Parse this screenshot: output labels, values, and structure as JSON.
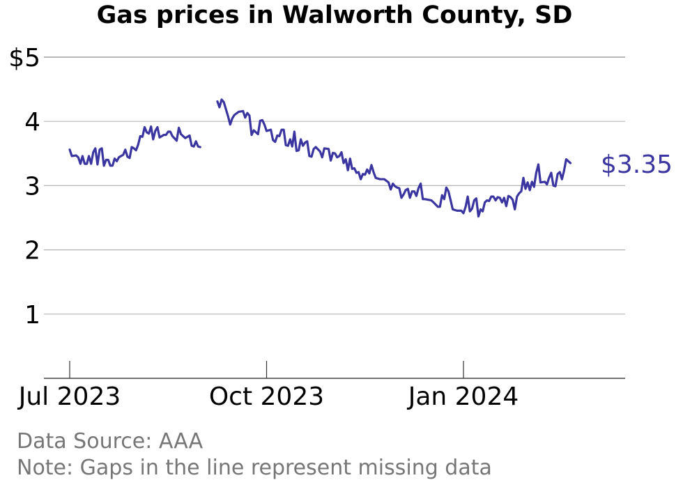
{
  "chart_data": {
    "type": "line",
    "title": "Gas prices in Walworth County, SD",
    "y_tick_labels": [
      "$5",
      "4",
      "3",
      "2",
      "1"
    ],
    "y_ticks": [
      5,
      4,
      3,
      2,
      1
    ],
    "ylim": [
      0,
      5
    ],
    "x_tick_labels": [
      "Jul 2023",
      "Oct 2023",
      "Jan 2024"
    ],
    "x_ticks": [
      "2023-07-01",
      "2023-10-01",
      "2024-01-01"
    ],
    "xlim": [
      "2023-06-20",
      "2024-03-30"
    ],
    "grid": "horizontal",
    "series": [
      {
        "color": "#3a35a0",
        "segments": [
          [
            [
              "2023-07-01",
              3.56
            ],
            [
              "2023-07-02",
              3.46
            ],
            [
              "2023-07-04",
              3.47
            ],
            [
              "2023-07-05",
              3.44
            ],
            [
              "2023-07-06",
              3.34
            ],
            [
              "2023-07-07",
              3.46
            ],
            [
              "2023-07-08",
              3.34
            ],
            [
              "2023-07-09",
              3.34
            ],
            [
              "2023-07-10",
              3.46
            ],
            [
              "2023-07-11",
              3.34
            ],
            [
              "2023-07-12",
              3.52
            ],
            [
              "2023-07-13",
              3.58
            ],
            [
              "2023-07-14",
              3.33
            ],
            [
              "2023-07-15",
              3.56
            ],
            [
              "2023-07-16",
              3.58
            ],
            [
              "2023-07-17",
              3.31
            ],
            [
              "2023-07-18",
              3.4
            ],
            [
              "2023-07-19",
              3.4
            ],
            [
              "2023-07-20",
              3.31
            ],
            [
              "2023-07-21",
              3.31
            ],
            [
              "2023-07-22",
              3.42
            ],
            [
              "2023-07-23",
              3.38
            ],
            [
              "2023-07-24",
              3.44
            ],
            [
              "2023-07-26",
              3.48
            ],
            [
              "2023-07-27",
              3.56
            ],
            [
              "2023-07-28",
              3.45
            ],
            [
              "2023-07-29",
              3.43
            ],
            [
              "2023-07-30",
              3.6
            ],
            [
              "2023-07-31",
              3.58
            ],
            [
              "2023-08-01",
              3.55
            ],
            [
              "2023-08-02",
              3.64
            ],
            [
              "2023-08-03",
              3.77
            ],
            [
              "2023-08-04",
              3.76
            ],
            [
              "2023-08-05",
              3.91
            ],
            [
              "2023-08-06",
              3.83
            ],
            [
              "2023-08-07",
              3.81
            ],
            [
              "2023-08-08",
              3.92
            ],
            [
              "2023-08-09",
              3.72
            ],
            [
              "2023-08-10",
              3.85
            ],
            [
              "2023-08-11",
              3.91
            ],
            [
              "2023-08-12",
              3.75
            ],
            [
              "2023-08-14",
              3.79
            ],
            [
              "2023-08-15",
              3.79
            ],
            [
              "2023-08-16",
              3.84
            ],
            [
              "2023-08-17",
              3.84
            ],
            [
              "2023-08-18",
              3.77
            ],
            [
              "2023-08-20",
              3.7
            ],
            [
              "2023-08-21",
              3.9
            ],
            [
              "2023-08-22",
              3.8
            ],
            [
              "2023-08-24",
              3.74
            ],
            [
              "2023-08-26",
              3.78
            ],
            [
              "2023-08-27",
              3.62
            ],
            [
              "2023-08-28",
              3.61
            ],
            [
              "2023-08-29",
              3.69
            ],
            [
              "2023-08-30",
              3.61
            ],
            [
              "2023-08-31",
              3.6
            ]
          ],
          [
            [
              "2023-09-08",
              4.31
            ],
            [
              "2023-09-09",
              4.22
            ],
            [
              "2023-09-10",
              4.34
            ],
            [
              "2023-09-11",
              4.3
            ],
            [
              "2023-09-13",
              4.08
            ],
            [
              "2023-09-14",
              3.95
            ],
            [
              "2023-09-15",
              4.05
            ],
            [
              "2023-09-16",
              4.1
            ],
            [
              "2023-09-18",
              4.15
            ],
            [
              "2023-09-20",
              4.16
            ],
            [
              "2023-09-21",
              4.06
            ],
            [
              "2023-09-22",
              4.13
            ],
            [
              "2023-09-23",
              4.09
            ],
            [
              "2023-09-24",
              3.79
            ],
            [
              "2023-09-25",
              3.86
            ],
            [
              "2023-09-27",
              3.8
            ],
            [
              "2023-09-28",
              4.01
            ],
            [
              "2023-09-29",
              4.02
            ],
            [
              "2023-09-30",
              3.95
            ],
            [
              "2023-10-01",
              3.85
            ],
            [
              "2023-10-03",
              3.87
            ],
            [
              "2023-10-04",
              3.71
            ],
            [
              "2023-10-05",
              3.68
            ],
            [
              "2023-10-06",
              3.78
            ],
            [
              "2023-10-07",
              3.77
            ],
            [
              "2023-10-08",
              3.87
            ],
            [
              "2023-10-09",
              3.87
            ],
            [
              "2023-10-10",
              3.63
            ],
            [
              "2023-10-11",
              3.62
            ],
            [
              "2023-10-12",
              3.72
            ],
            [
              "2023-10-13",
              3.61
            ],
            [
              "2023-10-14",
              3.84
            ],
            [
              "2023-10-15",
              3.54
            ],
            [
              "2023-10-16",
              3.55
            ],
            [
              "2023-10-17",
              3.72
            ],
            [
              "2023-10-18",
              3.62
            ],
            [
              "2023-10-19",
              3.67
            ],
            [
              "2023-10-20",
              3.69
            ],
            [
              "2023-10-21",
              3.46
            ],
            [
              "2023-10-22",
              3.45
            ],
            [
              "2023-10-23",
              3.57
            ],
            [
              "2023-10-24",
              3.6
            ],
            [
              "2023-10-26",
              3.53
            ],
            [
              "2023-10-27",
              3.44
            ],
            [
              "2023-10-28",
              3.58
            ],
            [
              "2023-10-30",
              3.57
            ],
            [
              "2023-10-31",
              3.39
            ],
            [
              "2023-11-01",
              3.51
            ],
            [
              "2023-11-02",
              3.5
            ],
            [
              "2023-11-03",
              3.44
            ],
            [
              "2023-11-04",
              3.46
            ],
            [
              "2023-11-05",
              3.52
            ],
            [
              "2023-11-06",
              3.35
            ],
            [
              "2023-11-07",
              3.41
            ],
            [
              "2023-11-08",
              3.24
            ],
            [
              "2023-11-09",
              3.42
            ],
            [
              "2023-11-10",
              3.26
            ],
            [
              "2023-11-11",
              3.27
            ],
            [
              "2023-11-12",
              3.2
            ],
            [
              "2023-11-13",
              3.21
            ],
            [
              "2023-11-14",
              3.1
            ],
            [
              "2023-11-15",
              3.18
            ],
            [
              "2023-11-16",
              3.17
            ],
            [
              "2023-11-17",
              3.25
            ],
            [
              "2023-11-18",
              3.19
            ],
            [
              "2023-11-19",
              3.32
            ],
            [
              "2023-11-20",
              3.21
            ],
            [
              "2023-11-21",
              3.12
            ],
            [
              "2023-11-23",
              3.1
            ],
            [
              "2023-11-25",
              3.1
            ],
            [
              "2023-11-27",
              3.05
            ],
            [
              "2023-11-28",
              2.94
            ],
            [
              "2023-11-29",
              3.03
            ],
            [
              "2023-11-30",
              2.99
            ],
            [
              "2023-12-01",
              2.97
            ],
            [
              "2023-12-02",
              2.96
            ],
            [
              "2023-12-03",
              2.81
            ],
            [
              "2023-12-04",
              2.86
            ],
            [
              "2023-12-05",
              2.93
            ],
            [
              "2023-12-06",
              2.95
            ],
            [
              "2023-12-07",
              2.81
            ],
            [
              "2023-12-08",
              2.91
            ],
            [
              "2023-12-09",
              2.91
            ],
            [
              "2023-12-10",
              2.84
            ],
            [
              "2023-12-11",
              2.96
            ],
            [
              "2023-12-12",
              3.03
            ],
            [
              "2023-12-13",
              2.79
            ],
            [
              "2023-12-14",
              2.79
            ],
            [
              "2023-12-17",
              2.77
            ],
            [
              "2023-12-18",
              2.74
            ],
            [
              "2023-12-20",
              2.67
            ],
            [
              "2023-12-21",
              2.67
            ],
            [
              "2023-12-22",
              2.85
            ],
            [
              "2023-12-23",
              2.79
            ],
            [
              "2023-12-24",
              2.97
            ],
            [
              "2023-12-25",
              2.91
            ],
            [
              "2023-12-26",
              2.77
            ],
            [
              "2023-12-27",
              2.63
            ],
            [
              "2023-12-29",
              2.61
            ],
            [
              "2023-12-31",
              2.61
            ],
            [
              "2024-01-01",
              2.57
            ],
            [
              "2024-01-02",
              2.67
            ],
            [
              "2024-01-03",
              2.83
            ],
            [
              "2024-01-04",
              2.6
            ],
            [
              "2024-01-05",
              2.64
            ],
            [
              "2024-01-06",
              2.77
            ],
            [
              "2024-01-07",
              2.8
            ],
            [
              "2024-01-08",
              2.52
            ],
            [
              "2024-01-09",
              2.63
            ],
            [
              "2024-01-10",
              2.6
            ],
            [
              "2024-01-11",
              2.74
            ],
            [
              "2024-01-12",
              2.77
            ],
            [
              "2024-01-13",
              2.76
            ],
            [
              "2024-01-14",
              2.83
            ],
            [
              "2024-01-15",
              2.83
            ],
            [
              "2024-01-16",
              2.77
            ],
            [
              "2024-01-17",
              2.82
            ],
            [
              "2024-01-18",
              2.81
            ],
            [
              "2024-01-19",
              2.74
            ],
            [
              "2024-01-20",
              2.81
            ],
            [
              "2024-01-21",
              2.68
            ],
            [
              "2024-01-22",
              2.84
            ],
            [
              "2024-01-23",
              2.82
            ],
            [
              "2024-01-24",
              2.78
            ],
            [
              "2024-01-25",
              2.63
            ],
            [
              "2024-01-26",
              2.83
            ],
            [
              "2024-01-27",
              2.88
            ],
            [
              "2024-01-28",
              2.91
            ],
            [
              "2024-01-29",
              3.12
            ],
            [
              "2024-01-30",
              2.95
            ],
            [
              "2024-01-31",
              3.05
            ],
            [
              "2024-02-01",
              2.93
            ],
            [
              "2024-02-02",
              3.06
            ],
            [
              "2024-02-03",
              2.98
            ],
            [
              "2024-02-04",
              3.2
            ],
            [
              "2024-02-05",
              3.33
            ],
            [
              "2024-02-06",
              3.05
            ],
            [
              "2024-02-08",
              3.06
            ],
            [
              "2024-02-09",
              3.02
            ],
            [
              "2024-02-10",
              3.12
            ],
            [
              "2024-02-11",
              3.2
            ],
            [
              "2024-02-12",
              3.0
            ],
            [
              "2024-02-13",
              2.99
            ],
            [
              "2024-02-14",
              3.18
            ],
            [
              "2024-02-15",
              3.21
            ],
            [
              "2024-02-16",
              3.1
            ],
            [
              "2024-02-17",
              3.23
            ],
            [
              "2024-02-18",
              3.41
            ],
            [
              "2024-02-19",
              3.38
            ],
            [
              "2024-02-20",
              3.35
            ]
          ]
        ]
      }
    ],
    "end_label": "$3.35",
    "notes": [
      "Data Source: AAA",
      "Note: Gaps in the line represent missing data"
    ]
  }
}
